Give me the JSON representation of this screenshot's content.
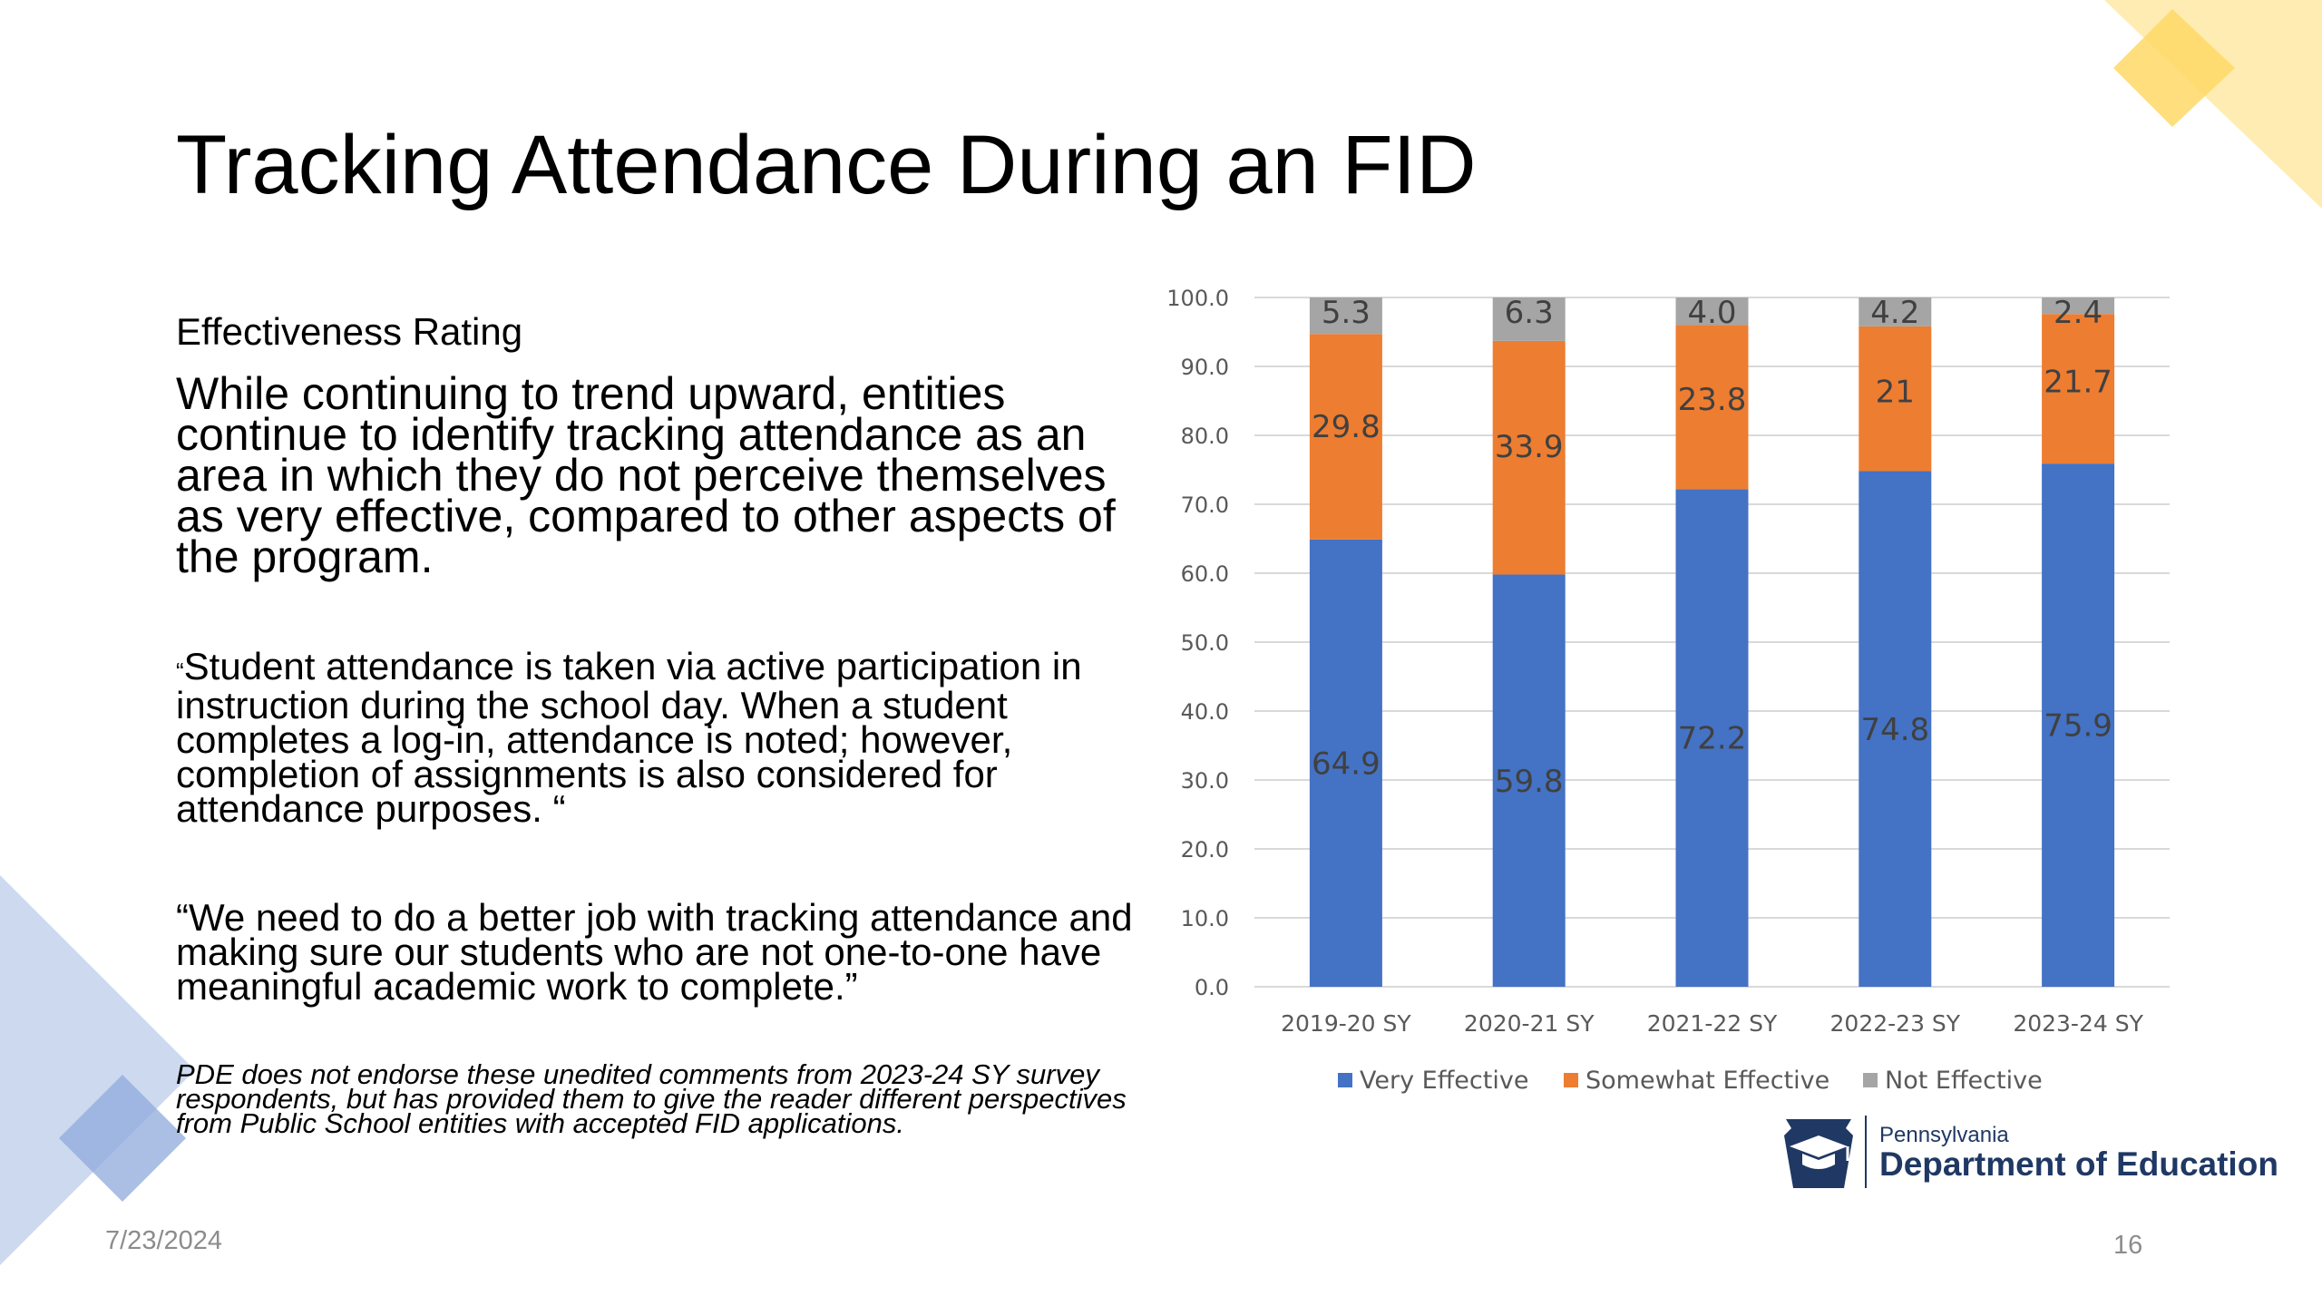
{
  "slide": {
    "title": "Tracking Attendance During an FID",
    "subhead": "Effectiveness Rating",
    "summary": "While continuing to trend upward, entities continue to identify tracking attendance as an area in which they do not perceive themselves as very effective, compared to other aspects of the program.",
    "quote1_open": "“",
    "quote1": "Student attendance is taken via active participation in instruction during the school day. When a student completes a log-in, attendance is noted; however, completion of assignments is also considered for attendance purposes. “",
    "quote2": "“We need to do a better job with tracking attendance and making sure our students who are not one-to-one have meaningful academic work to complete.”",
    "disclaimer": "PDE does not endorse these unedited comments from 2023-24 SY survey respondents, but has provided them to give the reader different perspectives from Public School entities with accepted FID applications.",
    "date": "7/23/2024",
    "page_number": "16"
  },
  "logo": {
    "line1": "Pennsylvania",
    "line2": "Department of Education",
    "color": "#1f3864"
  },
  "colors": {
    "very_effective": "#4472c4",
    "somewhat_effective": "#ed7d31",
    "not_effective": "#a5a5a5",
    "deco_yellow": "#ffd966",
    "deco_blue": "#8faadc"
  },
  "chart_data": {
    "type": "bar",
    "stacked": true,
    "categories": [
      "2019-20 SY",
      "2020-21 SY",
      "2021-22 SY",
      "2022-23 SY",
      "2023-24 SY"
    ],
    "series": [
      {
        "name": "Very Effective",
        "values": [
          64.9,
          59.8,
          72.2,
          74.8,
          75.9
        ],
        "labels": [
          "64.9",
          "59.8",
          "72.2",
          "74.8",
          "75.9"
        ],
        "color": "#4472c4"
      },
      {
        "name": "Somewhat Effective",
        "values": [
          29.8,
          33.9,
          23.8,
          21,
          21.7
        ],
        "labels": [
          "29.8",
          "33.9",
          "23.8",
          "21",
          "21.7"
        ],
        "color": "#ed7d31"
      },
      {
        "name": "Not Effective",
        "values": [
          5.3,
          6.3,
          4.0,
          4.2,
          2.4
        ],
        "labels": [
          "5.3",
          "6.3",
          "4.0",
          "4.2",
          "2.4"
        ],
        "color": "#a5a5a5"
      }
    ],
    "ylim": [
      0,
      100
    ],
    "yticks": [
      "0.0",
      "10.0",
      "20.0",
      "30.0",
      "40.0",
      "50.0",
      "60.0",
      "70.0",
      "80.0",
      "90.0",
      "100.0"
    ],
    "grid": true,
    "legend": "bottom",
    "title": "",
    "xlabel": "",
    "ylabel": ""
  }
}
